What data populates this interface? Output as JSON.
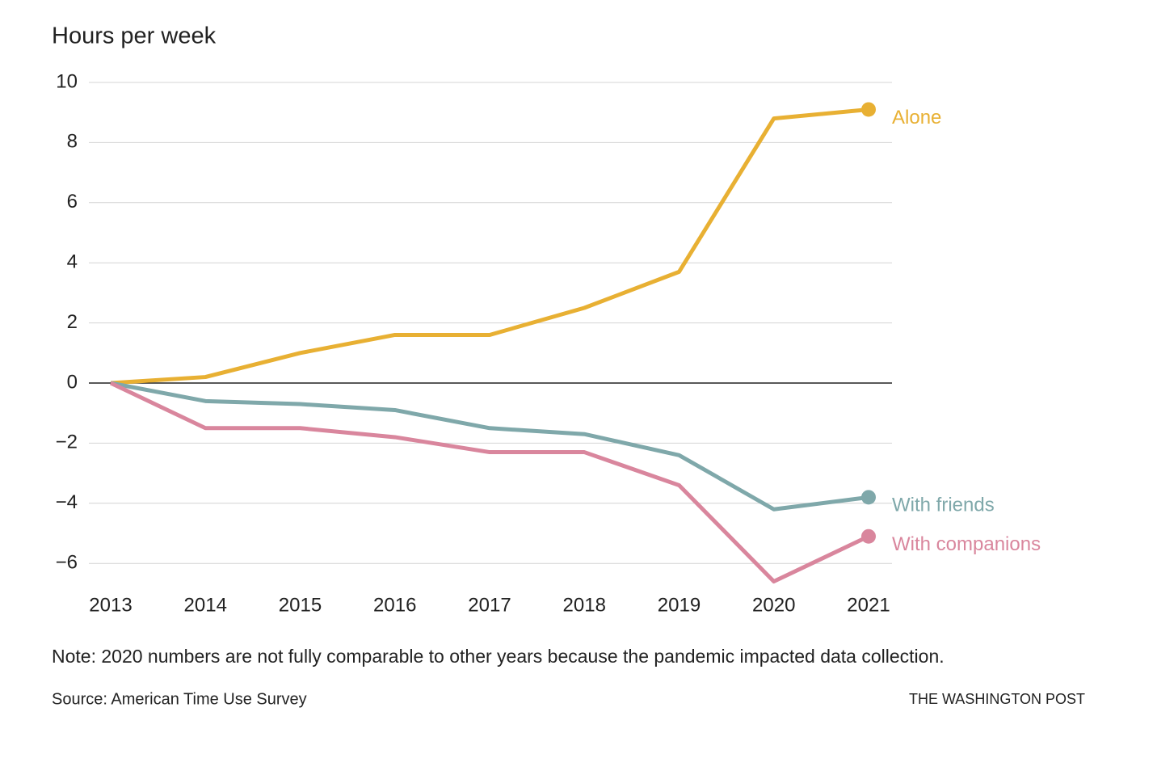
{
  "chart_data": {
    "type": "line",
    "y_title": "Hours per week",
    "categories": [
      "2013",
      "2014",
      "2015",
      "2016",
      "2017",
      "2018",
      "2019",
      "2020",
      "2021"
    ],
    "series": [
      {
        "name": "Alone",
        "color": "#e8b033",
        "values": [
          0,
          0.2,
          1.0,
          1.6,
          1.6,
          2.5,
          3.7,
          8.8,
          9.1
        ]
      },
      {
        "name": "With friends",
        "color": "#7fa8aa",
        "values": [
          0,
          -0.6,
          -0.7,
          -0.9,
          -1.5,
          -1.7,
          -2.4,
          -4.2,
          -3.8
        ]
      },
      {
        "name": "With companions",
        "color": "#d9869d",
        "values": [
          0,
          -1.5,
          -1.5,
          -1.8,
          -2.3,
          -2.3,
          -3.4,
          -6.6,
          -5.1
        ]
      }
    ],
    "ylim": [
      -6.9,
      10
    ],
    "yticks": [
      10,
      8,
      6,
      4,
      2,
      0,
      {
        "value": -2,
        "label": "−2"
      },
      {
        "value": -4,
        "label": "−4"
      },
      {
        "value": -6,
        "label": "−6"
      }
    ],
    "grid": true,
    "note": "Note: 2020 numbers are not fully comparable to other years because the pandemic impacted data collection.",
    "source": "Source: American Time Use Survey",
    "credit": "THE WASHINGTON POST"
  }
}
